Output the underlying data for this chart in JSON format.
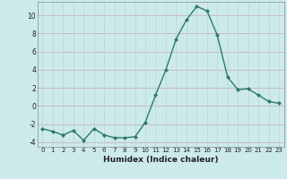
{
  "x": [
    0,
    1,
    2,
    3,
    4,
    5,
    6,
    7,
    8,
    9,
    10,
    11,
    12,
    13,
    14,
    15,
    16,
    17,
    18,
    19,
    20,
    21,
    22,
    23
  ],
  "y": [
    -2.5,
    -2.8,
    -3.2,
    -2.7,
    -3.8,
    -2.5,
    -3.2,
    -3.5,
    -3.5,
    -3.4,
    -1.8,
    1.2,
    4.0,
    7.4,
    9.5,
    11.0,
    10.5,
    7.8,
    3.2,
    1.8,
    1.9,
    1.2,
    0.5,
    0.3
  ],
  "line_color": "#2d7a6a",
  "marker": "D",
  "marker_size": 2.0,
  "bg_color": "#cceaea",
  "grid_color": "#b8d8d8",
  "grid_major_color": "#c8a0a0",
  "xlabel": "Humidex (Indice chaleur)",
  "ylim": [
    -4.5,
    11.5
  ],
  "xlim": [
    -0.5,
    23.5
  ],
  "yticks": [
    -4,
    -2,
    0,
    2,
    4,
    6,
    8,
    10
  ],
  "xticks": [
    0,
    1,
    2,
    3,
    4,
    5,
    6,
    7,
    8,
    9,
    10,
    11,
    12,
    13,
    14,
    15,
    16,
    17,
    18,
    19,
    20,
    21,
    22,
    23
  ]
}
